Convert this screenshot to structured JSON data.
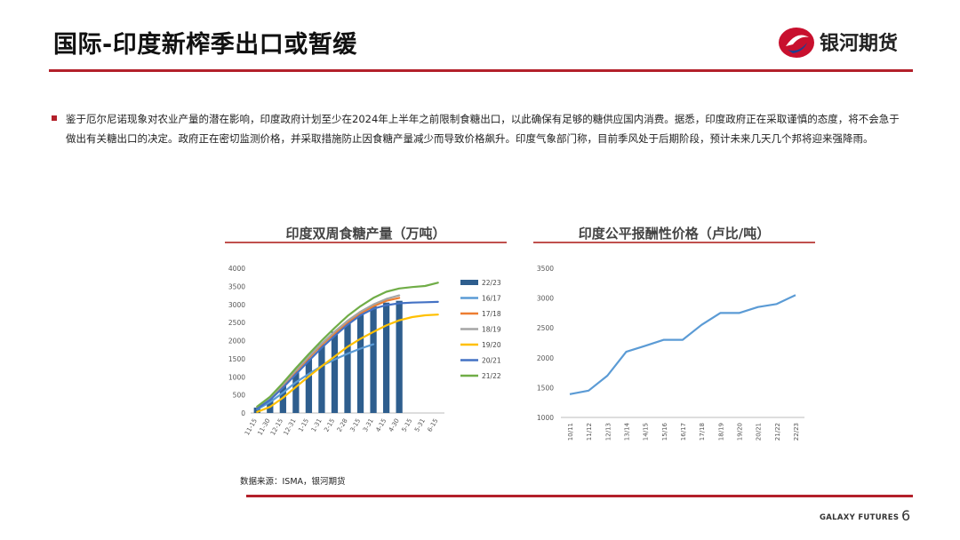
{
  "header": {
    "title": "国际-印度新榨季出口或暂缓",
    "logo_text": "银河期货"
  },
  "body": {
    "paragraph": "鉴于厄尔尼诺现象对农业产量的潜在影响，印度政府计划至少在2024年上半年之前限制食糖出口，以此确保有足够的糖供应国内消费。据悉，印度政府正在采取谨慎的态度，将不会急于做出有关糖出口的决定。政府正在密切监测价格，并采取措施防止因食糖产量减少而导致价格飙升。印度气象部门称，目前季风处于后期阶段，预计未来几天几个邦将迎来强降雨。"
  },
  "source": "数据来源：ISMA，银河期货",
  "footer": {
    "brand": "GALAXY FUTURES",
    "page": "6"
  },
  "colors": {
    "accent": "#b3202a",
    "chart_rule": "#c0504d"
  },
  "chart_data": [
    {
      "type": "bar",
      "title": "印度双周食糖产量（万吨）",
      "categories": [
        "11-15",
        "11-30",
        "12-15",
        "12-31",
        "1-15",
        "1-31",
        "2-15",
        "2-28",
        "3-15",
        "3-31",
        "4-15",
        "4-30",
        "5-15",
        "5-31",
        "6-15"
      ],
      "ylim": [
        0,
        4000
      ],
      "yticks": [
        0,
        500,
        1000,
        1500,
        2000,
        2500,
        3000,
        3500,
        4000
      ],
      "legend_position": "right",
      "series": [
        {
          "name": "22/23",
          "kind": "bar",
          "color": "#2e5e8e",
          "values": [
            150,
            400,
            750,
            1150,
            1500,
            1900,
            2250,
            2500,
            2750,
            2950,
            3050,
            3100,
            null,
            null,
            null
          ]
        },
        {
          "name": "16/17",
          "kind": "line",
          "color": "#5b9bd5",
          "values": [
            100,
            300,
            560,
            850,
            1080,
            1300,
            1480,
            1640,
            1780,
            1900,
            null,
            null,
            null,
            null,
            null
          ]
        },
        {
          "name": "17/18",
          "kind": "line",
          "color": "#ed7d31",
          "values": [
            150,
            400,
            770,
            1150,
            1520,
            1880,
            2200,
            2500,
            2750,
            2950,
            3100,
            3180,
            null,
            null,
            null
          ]
        },
        {
          "name": "18/19",
          "kind": "line",
          "color": "#a5a5a5",
          "values": [
            160,
            420,
            790,
            1180,
            1560,
            1920,
            2250,
            2550,
            2800,
            3000,
            3150,
            3250,
            null,
            null,
            null
          ]
        },
        {
          "name": "19/20",
          "kind": "line",
          "color": "#ffc000",
          "values": [
            30,
            170,
            420,
            720,
            1010,
            1290,
            1560,
            1830,
            2050,
            2240,
            2420,
            2560,
            2650,
            2700,
            2720
          ]
        },
        {
          "name": "20/21",
          "kind": "line",
          "color": "#4472c4",
          "values": [
            120,
            360,
            700,
            1070,
            1440,
            1800,
            2130,
            2440,
            2700,
            2880,
            2980,
            3030,
            3050,
            3060,
            3070
          ]
        },
        {
          "name": "21/22",
          "kind": "line",
          "color": "#70ad47",
          "values": [
            180,
            450,
            830,
            1240,
            1630,
            2000,
            2350,
            2680,
            2950,
            3180,
            3350,
            3440,
            3480,
            3510,
            3600
          ]
        }
      ]
    },
    {
      "type": "line",
      "title": "印度公平报酬性价格（卢比/吨）",
      "categories": [
        "10/11",
        "11/12",
        "12/13",
        "13/14",
        "14/15",
        "15/16",
        "16/17",
        "17/18",
        "18/19",
        "19/20",
        "20/21",
        "21/22",
        "22/23"
      ],
      "ylim": [
        1000,
        3500
      ],
      "yticks": [
        1000,
        1500,
        2000,
        2500,
        3000,
        3500
      ],
      "series": [
        {
          "name": "",
          "color": "#5b9bd5",
          "values": [
            1390,
            1450,
            1700,
            2100,
            2200,
            2300,
            2300,
            2550,
            2750,
            2750,
            2850,
            2900,
            3050
          ]
        }
      ]
    }
  ]
}
